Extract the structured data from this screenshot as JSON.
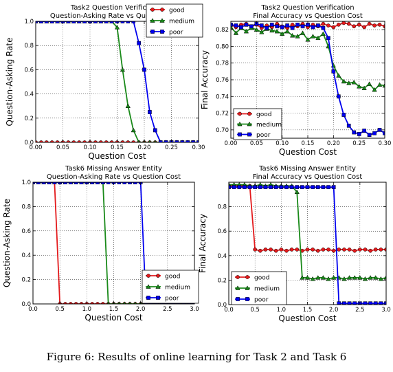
{
  "caption": "Figure 6: Results of online learning for Task 2 and Task 6",
  "colors": {
    "good": "#e31a1c",
    "medium": "#1a8a1a",
    "poor": "#0000ee"
  },
  "chart_data": [
    {
      "type": "line",
      "title": "Task2 Question Verification",
      "subtitle": "Question-Asking Rate vs Question Cost",
      "xlabel": "Question Cost",
      "ylabel": "Question-Asking Rate",
      "xlim": [
        0,
        0.3
      ],
      "ylim": [
        0,
        1
      ],
      "xticks": [
        0,
        0.05,
        0.1,
        0.15,
        0.2,
        0.25,
        0.3
      ],
      "yticks": [
        0,
        0.2,
        0.4,
        0.6,
        0.8,
        1.0
      ],
      "xtick_labels": [
        "0.00",
        "0.05",
        "0.10",
        "0.15",
        "0.20",
        "0.25",
        "0.30"
      ],
      "ytick_labels": [
        "0.0",
        "0.2",
        "0.4",
        "0.6",
        "0.8",
        "1.0"
      ],
      "grid": true,
      "legend": "top-right",
      "x": [
        0,
        0.01,
        0.02,
        0.03,
        0.04,
        0.05,
        0.06,
        0.07,
        0.08,
        0.09,
        0.1,
        0.11,
        0.12,
        0.13,
        0.14,
        0.15,
        0.16,
        0.17,
        0.18,
        0.19,
        0.2,
        0.21,
        0.22,
        0.23,
        0.24,
        0.25,
        0.26,
        0.27,
        0.28,
        0.29,
        0.3
      ],
      "series": [
        {
          "name": "good",
          "marker": "circle",
          "values": [
            0,
            0,
            0,
            0,
            0,
            0,
            0,
            0,
            0,
            0,
            0,
            0,
            0,
            0,
            0,
            0,
            0,
            0,
            0,
            0,
            0,
            0,
            0,
            0,
            0,
            0,
            0,
            0,
            0,
            0,
            0
          ]
        },
        {
          "name": "medium",
          "marker": "triangle",
          "values": [
            1,
            1,
            1,
            1,
            1,
            1,
            1,
            1,
            1,
            1,
            1,
            1,
            1,
            1,
            1,
            0.95,
            0.6,
            0.3,
            0.1,
            0,
            0,
            0,
            0,
            0,
            0,
            0,
            0,
            0,
            0,
            0,
            0
          ]
        },
        {
          "name": "poor",
          "marker": "square",
          "values": [
            1,
            1,
            1,
            1,
            1,
            1,
            1,
            1,
            1,
            1,
            1,
            1,
            1,
            1,
            1,
            1,
            1,
            1,
            1,
            0.82,
            0.6,
            0.25,
            0.1,
            0,
            0,
            0,
            0,
            0,
            0,
            0,
            0
          ]
        }
      ]
    },
    {
      "type": "line",
      "title": "Task2 Question Verification",
      "subtitle": "Final Accuracy vs Question Cost",
      "xlabel": "Question Cost",
      "ylabel": "Final Accuracy",
      "xlim": [
        0,
        0.3
      ],
      "ylim": [
        0.69,
        0.83
      ],
      "xticks": [
        0,
        0.05,
        0.1,
        0.15,
        0.2,
        0.25,
        0.3
      ],
      "yticks": [
        0.7,
        0.72,
        0.74,
        0.76,
        0.78,
        0.8,
        0.82
      ],
      "xtick_labels": [
        "0.00",
        "0.05",
        "0.10",
        "0.15",
        "0.20",
        "0.25",
        "0.30"
      ],
      "ytick_labels": [
        "0.70",
        "0.72",
        "0.74",
        "0.76",
        "0.78",
        "0.80",
        "0.82"
      ],
      "grid": true,
      "legend": "bottom-left",
      "x": [
        0,
        0.01,
        0.02,
        0.03,
        0.04,
        0.05,
        0.06,
        0.07,
        0.08,
        0.09,
        0.1,
        0.11,
        0.12,
        0.13,
        0.14,
        0.15,
        0.16,
        0.17,
        0.18,
        0.19,
        0.2,
        0.21,
        0.22,
        0.23,
        0.24,
        0.25,
        0.26,
        0.27,
        0.28,
        0.29,
        0.3
      ],
      "series": [
        {
          "name": "good",
          "marker": "circle",
          "values": [
            0.826,
            0.823,
            0.826,
            0.827,
            0.824,
            0.826,
            0.822,
            0.825,
            0.823,
            0.827,
            0.824,
            0.822,
            0.826,
            0.824,
            0.827,
            0.823,
            0.826,
            0.824,
            0.827,
            0.825,
            0.823,
            0.826,
            0.828,
            0.827,
            0.824,
            0.826,
            0.823,
            0.827,
            0.825,
            0.826,
            0.824
          ]
        },
        {
          "name": "medium",
          "marker": "triangle",
          "values": [
            0.823,
            0.816,
            0.822,
            0.818,
            0.822,
            0.82,
            0.817,
            0.821,
            0.819,
            0.818,
            0.815,
            0.818,
            0.813,
            0.812,
            0.816,
            0.808,
            0.812,
            0.81,
            0.815,
            0.8,
            0.777,
            0.765,
            0.758,
            0.756,
            0.757,
            0.752,
            0.75,
            0.755,
            0.748,
            0.754,
            0.753
          ]
        },
        {
          "name": "poor",
          "marker": "square",
          "values": [
            0.826,
            0.825,
            0.823,
            0.826,
            0.824,
            0.827,
            0.825,
            0.822,
            0.826,
            0.824,
            0.823,
            0.825,
            0.822,
            0.826,
            0.824,
            0.826,
            0.823,
            0.825,
            0.822,
            0.81,
            0.77,
            0.74,
            0.718,
            0.705,
            0.697,
            0.695,
            0.699,
            0.694,
            0.696,
            0.7,
            0.696
          ]
        }
      ]
    },
    {
      "type": "line",
      "title": "Task6 Missing Answer Entity",
      "subtitle": "Question-Asking Rate vs Question Cost",
      "xlabel": "Question Cost",
      "ylabel": "Question-Asking Rate",
      "xlim": [
        0,
        3
      ],
      "ylim": [
        0,
        1
      ],
      "xticks": [
        0,
        0.5,
        1,
        1.5,
        2,
        2.5,
        3
      ],
      "yticks": [
        0,
        0.2,
        0.4,
        0.6,
        0.8,
        1.0
      ],
      "xtick_labels": [
        "0.0",
        "0.5",
        "1.0",
        "1.5",
        "2.0",
        "2.5",
        "3.0"
      ],
      "ytick_labels": [
        "0.0",
        "0.2",
        "0.4",
        "0.6",
        "0.8",
        "1.0"
      ],
      "grid": true,
      "legend": "bottom-right",
      "x": [
        0,
        0.1,
        0.2,
        0.3,
        0.4,
        0.5,
        0.6,
        0.7,
        0.8,
        0.9,
        1.0,
        1.1,
        1.2,
        1.3,
        1.4,
        1.5,
        1.6,
        1.7,
        1.8,
        1.9,
        2.0,
        2.1,
        2.2,
        2.3,
        2.4,
        2.5,
        2.6,
        2.7,
        2.8,
        2.9,
        3.0
      ],
      "series": [
        {
          "name": "good",
          "marker": "circle",
          "values": [
            1,
            1,
            1,
            1,
            1,
            0,
            0,
            0,
            0,
            0,
            0,
            0,
            0,
            0,
            0,
            0,
            0,
            0,
            0,
            0,
            0,
            0,
            0,
            0,
            0,
            0,
            0,
            0,
            0,
            0,
            0
          ]
        },
        {
          "name": "medium",
          "marker": "triangle",
          "values": [
            1,
            1,
            1,
            1,
            1,
            1,
            1,
            1,
            1,
            1,
            1,
            1,
            1,
            1,
            0,
            0,
            0,
            0,
            0,
            0,
            0,
            0,
            0,
            0,
            0,
            0,
            0,
            0,
            0,
            0,
            0
          ]
        },
        {
          "name": "poor",
          "marker": "square",
          "values": [
            1,
            1,
            1,
            1,
            1,
            1,
            1,
            1,
            1,
            1,
            1,
            1,
            1,
            1,
            1,
            1,
            1,
            1,
            1,
            1,
            1,
            0,
            0,
            0,
            0,
            0,
            0,
            0,
            0,
            0,
            0
          ]
        }
      ]
    },
    {
      "type": "line",
      "title": "Task6 Missing Answer Entity",
      "subtitle": "Final Accuracy vs Question Cost",
      "xlabel": "Question Cost",
      "ylabel": "Final Accuracy",
      "xlim": [
        0,
        3
      ],
      "ylim": [
        0,
        1
      ],
      "xticks": [
        0,
        0.5,
        1,
        1.5,
        2,
        2.5,
        3
      ],
      "yticks": [
        0,
        0.2,
        0.4,
        0.6,
        0.8
      ],
      "xtick_labels": [
        "0.0",
        "0.5",
        "1.0",
        "1.5",
        "2.0",
        "2.5",
        "3.0"
      ],
      "ytick_labels": [
        "0.0",
        "0.2",
        "0.4",
        "0.6",
        "0.8"
      ],
      "grid": true,
      "legend": "bottom-left",
      "x": [
        0,
        0.1,
        0.2,
        0.3,
        0.4,
        0.5,
        0.6,
        0.7,
        0.8,
        0.9,
        1.0,
        1.1,
        1.2,
        1.3,
        1.4,
        1.5,
        1.6,
        1.7,
        1.8,
        1.9,
        2.0,
        2.1,
        2.2,
        2.3,
        2.4,
        2.5,
        2.6,
        2.7,
        2.8,
        2.9,
        3.0
      ],
      "series": [
        {
          "name": "good",
          "marker": "circle",
          "values": [
            0.97,
            0.97,
            0.97,
            0.97,
            0.97,
            0.45,
            0.44,
            0.45,
            0.45,
            0.44,
            0.45,
            0.44,
            0.45,
            0.45,
            0.44,
            0.45,
            0.45,
            0.44,
            0.45,
            0.45,
            0.44,
            0.45,
            0.45,
            0.45,
            0.44,
            0.45,
            0.45,
            0.44,
            0.45,
            0.45,
            0.45
          ]
        },
        {
          "name": "medium",
          "marker": "triangle",
          "values": [
            0.98,
            0.98,
            0.98,
            0.98,
            0.97,
            0.97,
            0.98,
            0.97,
            0.98,
            0.97,
            0.97,
            0.97,
            0.97,
            0.92,
            0.22,
            0.22,
            0.21,
            0.22,
            0.22,
            0.21,
            0.22,
            0.22,
            0.21,
            0.22,
            0.22,
            0.22,
            0.21,
            0.22,
            0.22,
            0.21,
            0.22
          ]
        },
        {
          "name": "poor",
          "marker": "square",
          "values": [
            0.96,
            0.96,
            0.96,
            0.96,
            0.96,
            0.96,
            0.96,
            0.96,
            0.96,
            0.96,
            0.96,
            0.96,
            0.96,
            0.96,
            0.96,
            0.96,
            0.96,
            0.96,
            0.96,
            0.96,
            0.96,
            0.01,
            0.01,
            0.01,
            0.01,
            0.01,
            0.01,
            0.01,
            0.01,
            0.01,
            0.01
          ]
        }
      ]
    }
  ]
}
